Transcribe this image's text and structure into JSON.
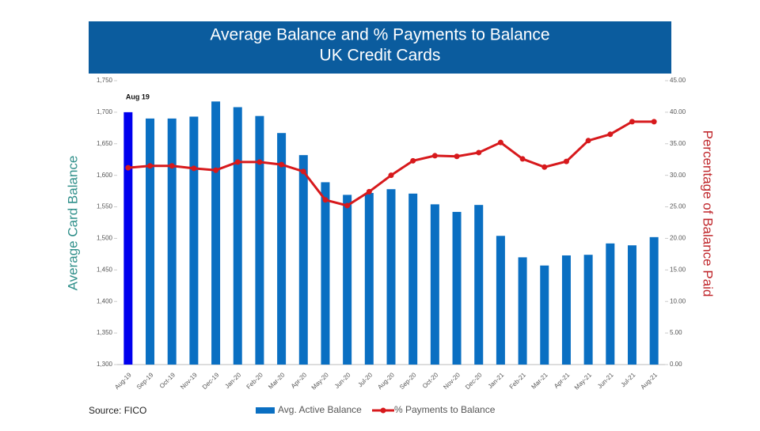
{
  "chart_data": {
    "type": "bar_line",
    "title": "Average Balance and % Payments to Balance",
    "subtitle": "UK Credit Cards",
    "ylabel": "Average Card Balance",
    "y2label": "Percentage of Balance Paid",
    "source": "Source: FICO",
    "categories": [
      "Aug-19",
      "Sep-19",
      "Oct-19",
      "Nov-19",
      "Dec-19",
      "Jan-20",
      "Feb-20",
      "Mar-20",
      "Apr-20",
      "May-20",
      "Jun-20",
      "Jul-20",
      "Aug-20",
      "Sep-20",
      "Oct-20",
      "Nov-20",
      "Dec-20",
      "Jan-21",
      "Feb-21",
      "Mar-21",
      "Apr-21",
      "May-21",
      "Jun-21",
      "Jul-21",
      "Aug-21"
    ],
    "series": [
      {
        "name": "Avg. Active Balance",
        "type": "bar",
        "color": "#0a6fc2",
        "values": [
          1700,
          1690,
          1690,
          1693,
          1717,
          1708,
          1694,
          1667,
          1632,
          1589,
          1569,
          1572,
          1578,
          1571,
          1554,
          1542,
          1553,
          1504,
          1470,
          1457,
          1473,
          1474,
          1492,
          1489,
          1502
        ]
      },
      {
        "name": "% Payments to Balance",
        "type": "line",
        "axis": "y2",
        "color": "#d7191c",
        "values": [
          31.2,
          31.5,
          31.5,
          31.1,
          30.8,
          32.1,
          32.1,
          31.7,
          30.6,
          26.1,
          25.2,
          27.4,
          30.0,
          32.3,
          33.1,
          33.0,
          33.6,
          35.2,
          32.6,
          31.3,
          32.2,
          35.5,
          36.5,
          38.5,
          38.5
        ]
      }
    ],
    "annotations": [
      {
        "text": "Aug 19",
        "x": "Aug-19",
        "color": "#0000ee"
      }
    ],
    "ylim": [
      1300,
      1750
    ],
    "yticks": [
      {
        "value": 1300,
        "label": "1,300"
      },
      {
        "value": 1350,
        "label": "1,350"
      },
      {
        "value": 1400,
        "label": "1,400"
      },
      {
        "value": 1450,
        "label": "1,450"
      },
      {
        "value": 1500,
        "label": "1,500"
      },
      {
        "value": 1550,
        "label": "1,550"
      },
      {
        "value": 1600,
        "label": "1,600"
      },
      {
        "value": 1650,
        "label": "1,650"
      },
      {
        "value": 1700,
        "label": "1,700"
      },
      {
        "value": 1750,
        "label": "1,750"
      }
    ],
    "y2lim": [
      0,
      45
    ],
    "y2ticks": [
      {
        "value": 0,
        "label": "0.00"
      },
      {
        "value": 5,
        "label": "5.00"
      },
      {
        "value": 10,
        "label": "10.00"
      },
      {
        "value": 15,
        "label": "15.00"
      },
      {
        "value": 20,
        "label": "20.00"
      },
      {
        "value": 25,
        "label": "25.00"
      },
      {
        "value": 30,
        "label": "30.00"
      },
      {
        "value": 35,
        "label": "35.00"
      },
      {
        "value": 40,
        "label": "40.00"
      },
      {
        "value": 45,
        "label": "45.00"
      }
    ],
    "header_color": "#0b5c9e",
    "ylabel_color": "#2f8f8a",
    "y2label_color": "#c0282d",
    "legend": "bottom"
  }
}
